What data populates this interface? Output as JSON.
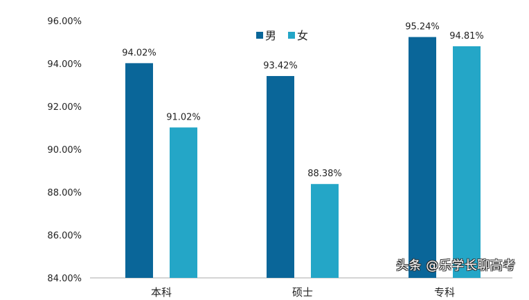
{
  "chart_data": {
    "type": "bar",
    "categories": [
      "本科",
      "硕士",
      "专科"
    ],
    "series": [
      {
        "name": "男",
        "values": [
          94.02,
          93.42,
          95.24
        ],
        "color": "#0a6699"
      },
      {
        "name": "女",
        "values": [
          91.02,
          88.38,
          94.81
        ],
        "color": "#24a6c7"
      }
    ],
    "data_labels": [
      [
        "94.02%",
        "93.42%",
        "95.24%"
      ],
      [
        "91.02%",
        "88.38%",
        "94.81%"
      ]
    ],
    "yticks": [
      "84.00%",
      "86.00%",
      "88.00%",
      "90.00%",
      "92.00%",
      "94.00%",
      "96.00%"
    ],
    "ylim": [
      84,
      96
    ],
    "grid": false,
    "legend": "top-center",
    "title": "",
    "xlabel": "",
    "ylabel": ""
  },
  "watermark": "头条 @乐学长聊高考"
}
